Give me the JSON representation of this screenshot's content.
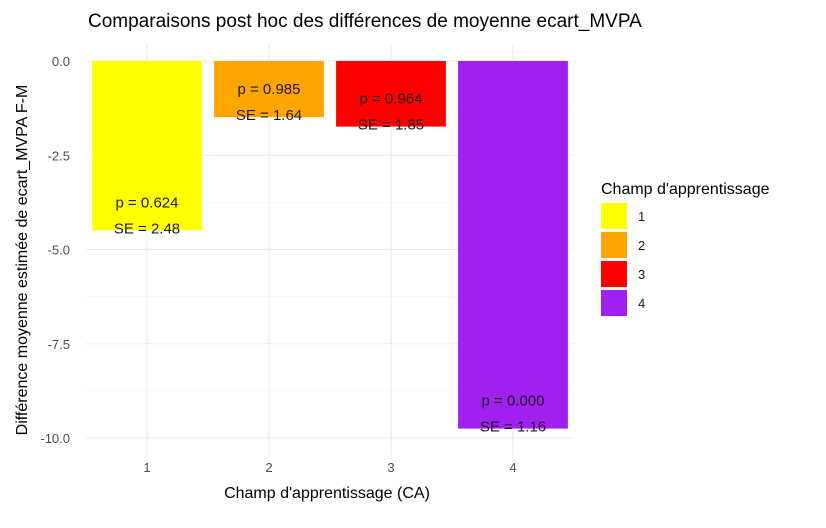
{
  "chart_data": {
    "type": "bar",
    "title": "Comparaisons post hoc des différences de moyenne ecart_MVPA",
    "xlabel": "Champ d'apprentissage (CA)",
    "ylabel": "Différence moyenne estimée de ecart_MVPA F-M",
    "categories": [
      "1",
      "2",
      "3",
      "4"
    ],
    "values": [
      -4.49,
      -1.49,
      -1.74,
      -9.75
    ],
    "colors": [
      "#FFFF00",
      "#FFA500",
      "#FF0000",
      "#A020F0"
    ],
    "bar_labels": [
      {
        "p": "p = 0.624",
        "se": "SE = 2.48"
      },
      {
        "p": "p = 0.985",
        "se": "SE = 1.64"
      },
      {
        "p": "p = 0.964",
        "se": "SE = 1.85"
      },
      {
        "p": "p = 0.000",
        "se": "SE = 1.16"
      }
    ],
    "ylim": [
      -10.6,
      0.45
    ],
    "yticks": [
      0.0,
      -2.5,
      -5.0,
      -7.5,
      -10.0
    ],
    "ytick_labels": [
      "0.0",
      "-2.5",
      "-5.0",
      "-7.5",
      "-10.0"
    ],
    "grid": true,
    "legend": {
      "title": "Champ d'apprentissage",
      "position": "right",
      "items": [
        "1",
        "2",
        "3",
        "4"
      ]
    }
  }
}
